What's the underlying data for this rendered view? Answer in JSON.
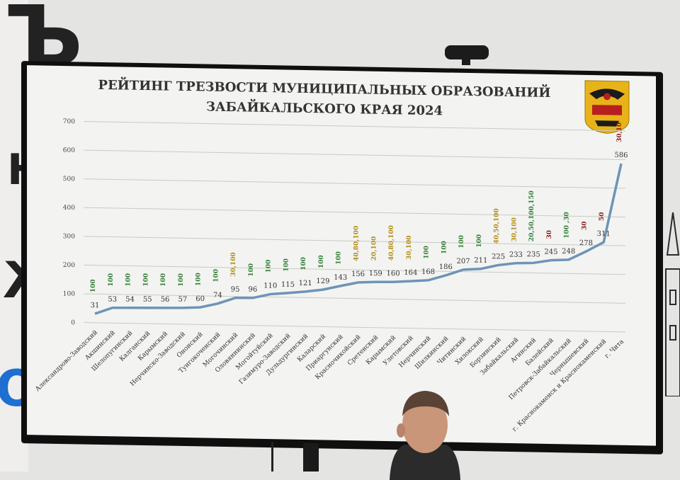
{
  "chart_data": {
    "type": "line",
    "title_line1": "РЕЙТИНГ ТРЕЗВОСТИ МУНИЦИПАЛЬНЫХ ОБРАЗОВАНИЙ",
    "title_line2": "ЗАБАЙКАЛЬСКОГО КРАЯ 2024",
    "ylim": [
      0,
      700
    ],
    "yticks": [
      "0",
      "100",
      "200",
      "300",
      "400",
      "500",
      "600",
      "700"
    ],
    "grid": true,
    "categories": [
      "Александрово-Заводский",
      "Акшинский",
      "Шелопугинский",
      "Калганский",
      "Карымский",
      "Нерчинско-Заводский",
      "Ононский",
      "Тунгокоченский",
      "Могочинский",
      "Оловяннинский",
      "Могойтуйский",
      "Газимуро-Заводский",
      "Дульдургинский",
      "Каларский",
      "Приаргунский",
      "Красночикойский",
      "Сретенский",
      "Карымский",
      "Улетовский",
      "Нерчинский",
      "Шилкинский",
      "Читинский",
      "Хилокский",
      "Борзинский",
      "Забайкальский",
      "Агинский",
      "Балейский",
      "Петровск-Забайкальский",
      "Чернышевский",
      "г. Краснокаменск и Краснокаменский",
      "г. Чита"
    ],
    "values": [
      31,
      53,
      54,
      55,
      56,
      57,
      60,
      74,
      95,
      96,
      110,
      115,
      121,
      129,
      143,
      156,
      159,
      160,
      164,
      168,
      186,
      207,
      211,
      225,
      233,
      235,
      245,
      248,
      278,
      311,
      586
    ],
    "annotations": [
      "100",
      "100",
      "100",
      "100",
      "100",
      "100",
      "100",
      "100",
      "30,100",
      "100",
      "100",
      "100",
      "100",
      "100",
      "100",
      "40,80,100",
      "20,100",
      "40,80,100",
      "30,100",
      "100",
      "100",
      "100",
      "100",
      "40,50,100",
      "30,100",
      "20,50,100,150",
      "30",
      "100 ,30",
      "30",
      "50",
      "30,10"
    ],
    "annotation_colors": [
      "#2e7d32",
      "#2e7d32",
      "#2e7d32",
      "#2e7d32",
      "#2e7d32",
      "#2e7d32",
      "#2e7d32",
      "#2e7d32",
      "#b38a12",
      "#2e7d32",
      "#2e7d32",
      "#2e7d32",
      "#2e7d32",
      "#2e7d32",
      "#2e7d32",
      "#b38a12",
      "#b38a12",
      "#b38a12",
      "#b38a12",
      "#2e7d32",
      "#2e7d32",
      "#2e7d32",
      "#2e7d32",
      "#b38a12",
      "#b38a12",
      "#2e7d32",
      "#8b1a1a",
      "#2e7d32",
      "#8b1a1a",
      "#8b1a1a",
      "#8b1a1a"
    ],
    "line_color": "#6f94b5",
    "grid_color": "#c9cac6"
  },
  "emblem": {
    "name": "coat-of-arms",
    "colors": {
      "gold": "#e8b318",
      "red": "#b81f1f",
      "black": "#1b1b1b"
    }
  }
}
